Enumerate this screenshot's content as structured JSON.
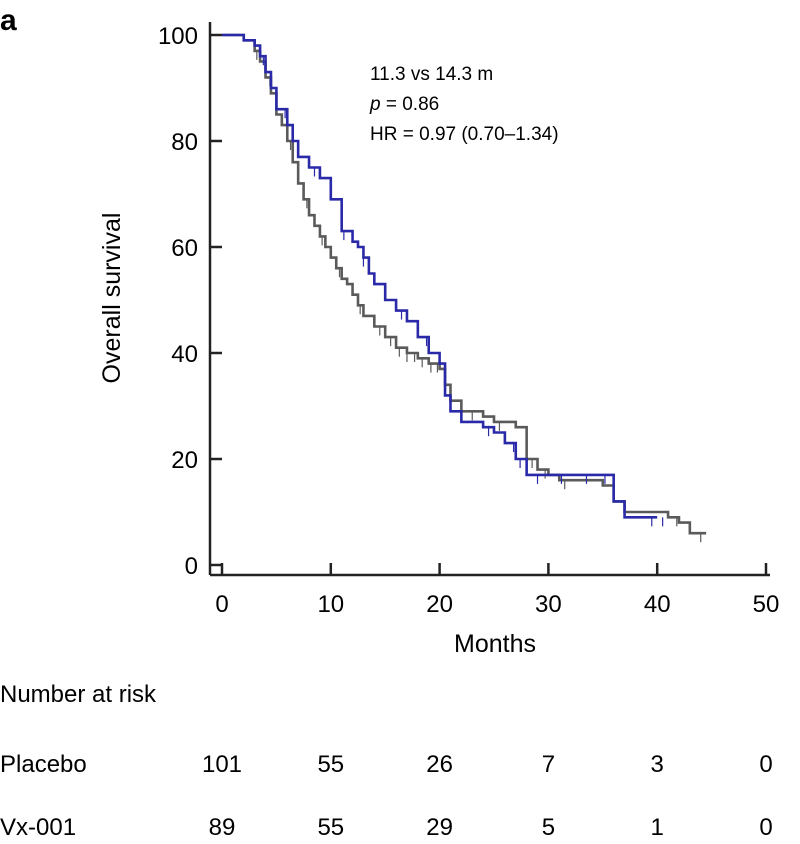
{
  "chart_data": {
    "type": "line",
    "panel_label": "a",
    "xlabel": "Months",
    "ylabel": "Overall survival",
    "xlim": [
      0,
      50
    ],
    "ylim": [
      0,
      100
    ],
    "xticks": [
      0,
      10,
      20,
      30,
      40,
      50
    ],
    "yticks": [
      0,
      20,
      40,
      60,
      80,
      100
    ],
    "annotations": {
      "line1": "11.3 vs 14.3 m",
      "line2_italic": "p",
      "line2_rest": " = 0.86",
      "line3": "HR = 0.97 (0.70–1.34)"
    },
    "series": [
      {
        "name": "Placebo",
        "color": "#5a5a5a",
        "x": [
          0,
          1,
          2,
          3,
          3.5,
          4,
          4.5,
          5,
          5.5,
          6,
          6.5,
          7,
          7.5,
          8,
          8.5,
          9,
          9.5,
          10,
          10.5,
          11,
          11.5,
          12,
          12.5,
          13,
          14,
          15,
          16,
          17,
          18,
          19,
          20,
          20.5,
          21,
          22,
          24,
          25,
          27,
          28,
          29,
          30,
          31,
          33,
          35,
          36,
          37,
          40,
          41,
          42,
          43,
          44.5
        ],
        "y": [
          100,
          100,
          99,
          97,
          95,
          92,
          89,
          85,
          83,
          80,
          76,
          72,
          69,
          66,
          64,
          62,
          60,
          58,
          56,
          54,
          53,
          51,
          49,
          47,
          45,
          43,
          41,
          40,
          39,
          38,
          37,
          34,
          31,
          29,
          28,
          27,
          26,
          20,
          18,
          17,
          16,
          16,
          15,
          12,
          10,
          10,
          9,
          8,
          6,
          6
        ],
        "censor_x": [
          3.2,
          4.4,
          6.3,
          7.8,
          9.2,
          10.8,
          12.7,
          14.5,
          15.5,
          16.3,
          17.0,
          17.7,
          18.4,
          19.2,
          19.8,
          23.0,
          25.5,
          28.5,
          29.7,
          31.5,
          41.8,
          44.0
        ]
      },
      {
        "name": "Vx-001",
        "color": "#2a2aa8",
        "x": [
          0,
          1,
          2,
          3,
          3.5,
          4,
          4.5,
          5,
          6,
          6.5,
          7,
          8,
          9,
          10,
          11,
          12,
          12.5,
          13,
          13.5,
          14,
          15,
          16,
          17,
          18,
          19,
          20,
          20.5,
          21,
          22,
          24,
          25,
          26,
          27,
          28,
          29,
          30,
          31,
          32,
          33,
          35,
          36,
          37,
          39,
          40
        ],
        "y": [
          100,
          100,
          99,
          98,
          96,
          93,
          90,
          86,
          83,
          80,
          77,
          75,
          73,
          69,
          63,
          61,
          60,
          58,
          55,
          53,
          50,
          48,
          46,
          43,
          40,
          38,
          32,
          29,
          27,
          26,
          25,
          23,
          20,
          17,
          17,
          17,
          17,
          17,
          17,
          17,
          12,
          9,
          9,
          9
        ],
        "censor_x": [
          3.8,
          5.8,
          8.5,
          11.2,
          13.0,
          16.5,
          18.8,
          24.5,
          26.8,
          27.4,
          29.0,
          31.2,
          33.5,
          35.2,
          39.5,
          40.5
        ]
      }
    ],
    "risk_table": {
      "title": "Number at risk",
      "rows": [
        {
          "label": "Placebo",
          "values": [
            "101",
            "55",
            "26",
            "7",
            "3",
            "0"
          ]
        },
        {
          "label": "Vx-001",
          "values": [
            "89",
            "55",
            "29",
            "5",
            "1",
            "0"
          ]
        }
      ]
    }
  }
}
